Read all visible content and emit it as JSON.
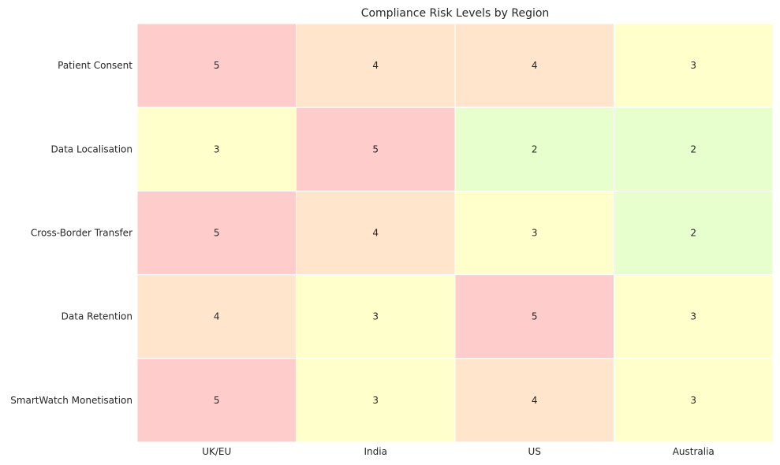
{
  "chart_data": {
    "type": "heatmap",
    "title": "Compliance Risk Levels by Region",
    "xlabel": "",
    "ylabel": "",
    "columns": [
      "UK/EU",
      "India",
      "US",
      "Australia"
    ],
    "rows": [
      "Patient Consent",
      "Data Localisation",
      "Cross-Border Transfer",
      "Data Retention",
      "SmartWatch Monetisation"
    ],
    "values": [
      [
        5,
        4,
        4,
        3
      ],
      [
        3,
        5,
        2,
        2
      ],
      [
        5,
        4,
        3,
        2
      ],
      [
        4,
        3,
        5,
        3
      ],
      [
        5,
        3,
        4,
        3
      ]
    ],
    "color_scale": {
      "2": "#e6ffcc",
      "3": "#ffffcc",
      "4": "#ffe5cc",
      "5": "#ffcccc"
    },
    "cell_border_color": "#ffffff",
    "colorbar": false,
    "grid": false
  }
}
